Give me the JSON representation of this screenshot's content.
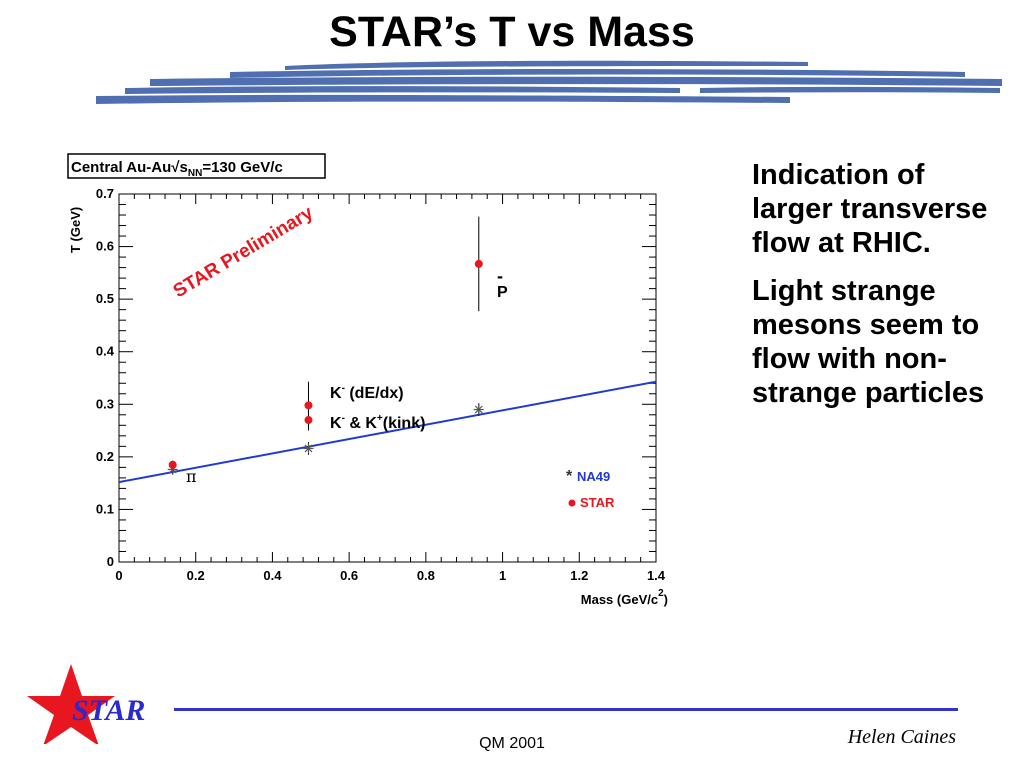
{
  "slide": {
    "title": "STAR’s T vs Mass",
    "bullets": [
      "Indication of larger transverse flow at RHIC.",
      "Light strange mesons seem to flow with non-strange particles"
    ],
    "footer_center": "QM 2001",
    "footer_right": "Helen Caines",
    "logo_text": "STAR"
  },
  "colors": {
    "brush": "#4f6fb0",
    "star_red": "#e8161e",
    "fit_line": "#1f38d6",
    "na49_label": "#1f38d6",
    "star_label": "#e8161e",
    "footer_line": "#3333cc"
  },
  "chart_data": {
    "type": "scatter",
    "header_label": {
      "prefix": "Central Au-Au",
      "sqrt": "√",
      "s": "s",
      "subscript": "NN",
      "suffix": "=130 GeV/c"
    },
    "watermark": "STAR Preliminary",
    "xlabel": "Mass (GeV/c",
    "xlabel_sup": "2",
    "xlabel_close": ")",
    "ylabel": "T (GeV)",
    "xlim": [
      0,
      1.4
    ],
    "ylim": [
      0,
      0.7
    ],
    "x_ticks": [
      "0",
      "0.2",
      "0.4",
      "0.6",
      "0.8",
      "1",
      "1.2",
      "1.4"
    ],
    "y_ticks": [
      "0",
      "0.1",
      "0.2",
      "0.3",
      "0.4",
      "0.5",
      "0.6",
      "0.7"
    ],
    "legend": {
      "position": "bottom-right",
      "entries": [
        {
          "marker": "*",
          "label": "NA49"
        },
        {
          "marker": "●",
          "label": "STAR"
        }
      ]
    },
    "series": [
      {
        "name": "NA49",
        "marker": "star",
        "points": [
          {
            "x": 0.14,
            "y": 0.176,
            "err": 0.01
          },
          {
            "x": 0.494,
            "y": 0.216,
            "err": 0.012
          },
          {
            "x": 0.938,
            "y": 0.29,
            "err": 0.012
          }
        ]
      },
      {
        "name": "STAR",
        "marker": "circle",
        "points": [
          {
            "x": 0.14,
            "y": 0.185,
            "err": 0.008
          },
          {
            "x": 0.494,
            "y": 0.298,
            "err": 0.045
          },
          {
            "x": 0.494,
            "y": 0.27,
            "err": 0.02
          },
          {
            "x": 0.938,
            "y": 0.567,
            "err": 0.09
          }
        ]
      }
    ],
    "fit_line": {
      "x": [
        0,
        1.4
      ],
      "y": [
        0.152,
        0.343
      ]
    },
    "annotations": [
      {
        "text": "π"
      },
      {
        "text": "K",
        "sup": "-",
        "rest": "  (dE/dx)"
      },
      {
        "text": "K",
        "sup": "-",
        "rest": " & K",
        "sup2": "+",
        "rest2": "(kink)"
      },
      {
        "text": "P",
        "overbar": "-"
      }
    ]
  }
}
